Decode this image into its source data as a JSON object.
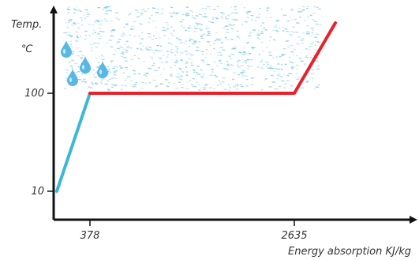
{
  "chart_data": {
    "type": "line",
    "ylabel_lines": [
      "Temp.",
      "℃"
    ],
    "xlabel": "Energy absorption KJ/kg",
    "x_ticks": [
      {
        "value": 378,
        "label": "378"
      },
      {
        "value": 2635,
        "label": "2635"
      }
    ],
    "y_ticks": [
      {
        "value": 10,
        "label": "10"
      },
      {
        "value": 100,
        "label": "100"
      }
    ],
    "series": [
      {
        "color": "#3bb8d8",
        "points": [
          {
            "x": 0,
            "y": 10
          },
          {
            "x": 378,
            "y": 100
          }
        ]
      },
      {
        "color": "#e8202a",
        "points": [
          {
            "x": 378,
            "y": 100
          },
          {
            "x": 2635,
            "y": 100
          },
          {
            "x": 3100,
            "y": 260
          }
        ]
      }
    ],
    "steam_color": "#7ec9e6",
    "droplet_color": "#58b7e4",
    "grid": false,
    "legend": "none"
  }
}
